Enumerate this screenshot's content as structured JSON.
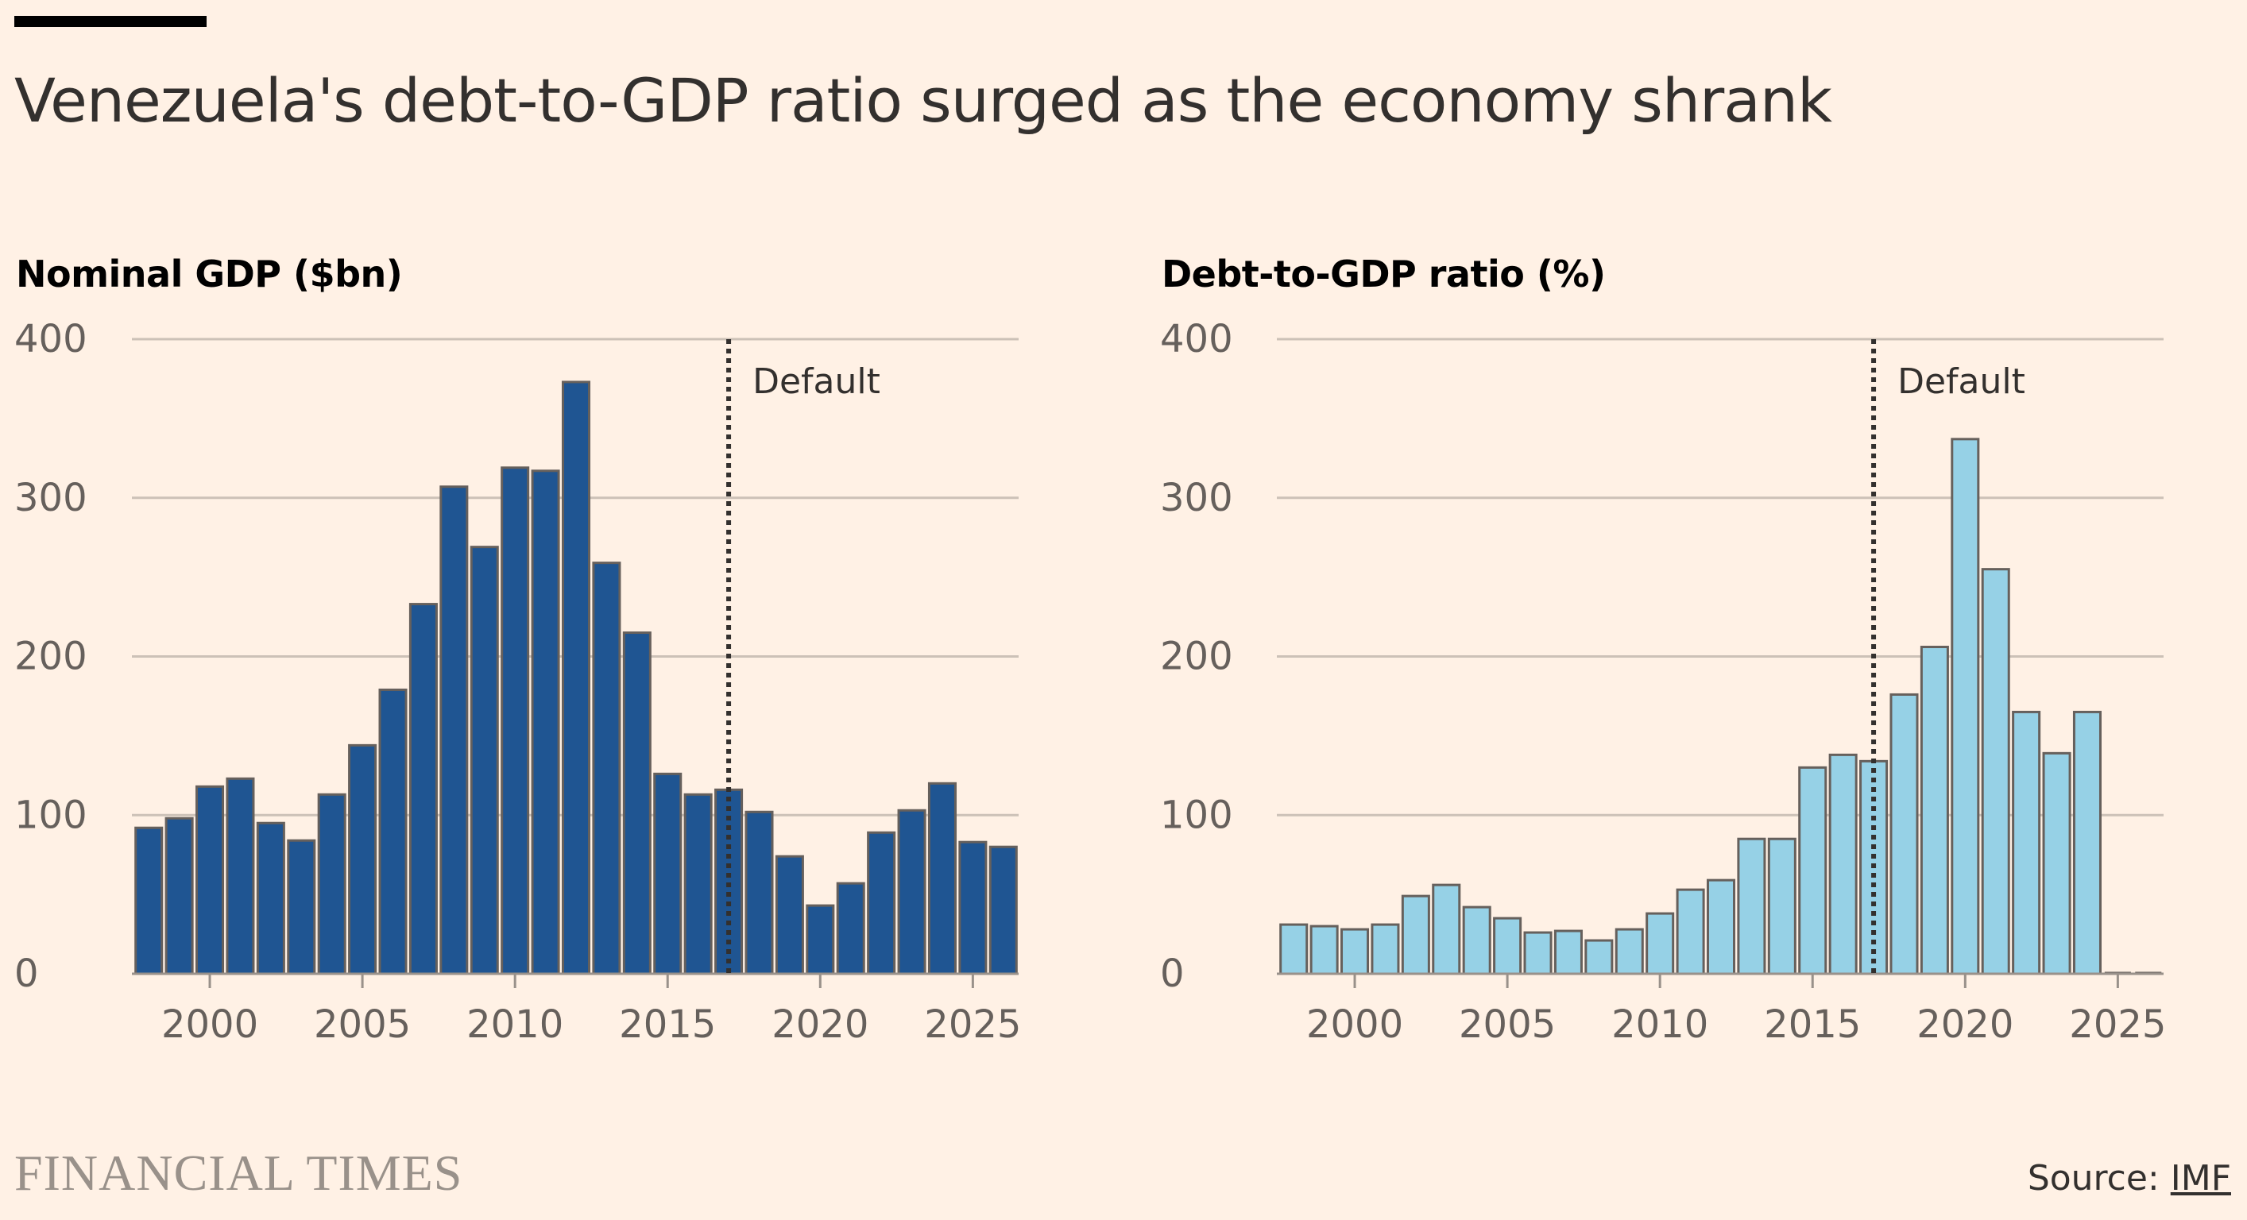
{
  "title": "Venezuela's debt-to-GDP ratio surged as the economy shrank",
  "footer": {
    "brand": "FINANCIAL TIMES",
    "source_prefix": "Source: ",
    "source_link": "IMF"
  },
  "colors": {
    "background": "#FFF1E5",
    "gdp_bar": "#1F5592",
    "ratio_bar": "#96D1E6",
    "bar_outline": "#66605C",
    "grid": "#CCC1B7",
    "annotation": "#33302E"
  },
  "chart_data": [
    {
      "type": "bar",
      "title": "Nominal GDP ($bn)",
      "xlabel": "",
      "ylabel": "",
      "ylim": [
        0,
        400
      ],
      "yticks": [
        0,
        100,
        200,
        300,
        400
      ],
      "xticks": [
        2000,
        2005,
        2010,
        2015,
        2020,
        2025
      ],
      "grid": true,
      "annotation": {
        "x": 2017,
        "label": "Default"
      },
      "categories": [
        1998,
        1999,
        2000,
        2001,
        2002,
        2003,
        2004,
        2005,
        2006,
        2007,
        2008,
        2009,
        2010,
        2011,
        2012,
        2013,
        2014,
        2015,
        2016,
        2017,
        2018,
        2019,
        2020,
        2021,
        2022,
        2023,
        2024,
        2025,
        2026
      ],
      "values": [
        92,
        98,
        118,
        123,
        95,
        84,
        113,
        144,
        179,
        233,
        307,
        269,
        319,
        317,
        373,
        259,
        215,
        126,
        113,
        116,
        102,
        74,
        43,
        57,
        89,
        103,
        120,
        83,
        80
      ]
    },
    {
      "type": "bar",
      "title": "Debt-to-GDP ratio (%)",
      "xlabel": "",
      "ylabel": "",
      "ylim": [
        0,
        400
      ],
      "yticks": [
        0,
        100,
        200,
        300,
        400
      ],
      "xticks": [
        2000,
        2005,
        2010,
        2015,
        2020,
        2025
      ],
      "grid": true,
      "annotation": {
        "x": 2017,
        "label": "Default"
      },
      "categories": [
        1998,
        1999,
        2000,
        2001,
        2002,
        2003,
        2004,
        2005,
        2006,
        2007,
        2008,
        2009,
        2010,
        2011,
        2012,
        2013,
        2014,
        2015,
        2016,
        2017,
        2018,
        2019,
        2020,
        2021,
        2022,
        2023,
        2024,
        2025,
        2026
      ],
      "values": [
        31,
        30,
        28,
        31,
        49,
        56,
        42,
        35,
        26,
        27,
        21,
        28,
        38,
        53,
        59,
        85,
        85,
        130,
        138,
        134,
        176,
        206,
        337,
        255,
        165,
        139,
        165,
        0,
        0
      ]
    }
  ]
}
